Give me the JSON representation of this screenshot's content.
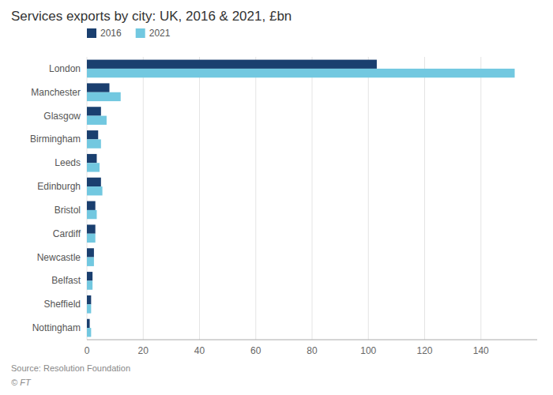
{
  "chart_data": {
    "type": "bar",
    "orientation": "horizontal",
    "title": "Services exports by city: UK, 2016 & 2021, £bn",
    "categories": [
      "London",
      "Manchester",
      "Glasgow",
      "Birmingham",
      "Leeds",
      "Edinburgh",
      "Bristol",
      "Cardiff",
      "Newcastle",
      "Belfast",
      "Sheffield",
      "Nottingham"
    ],
    "series": [
      {
        "name": "2016",
        "color": "#1a3f6f",
        "values": [
          103,
          8,
          5,
          4,
          3.5,
          5,
          3,
          3,
          2.5,
          2,
          1.5,
          1
        ]
      },
      {
        "name": "2021",
        "color": "#72c8e0",
        "values": [
          152,
          12,
          7,
          5,
          4.5,
          5.5,
          3.5,
          3,
          2.5,
          2,
          1.5,
          1.5
        ]
      }
    ],
    "xlim": [
      0,
      160
    ],
    "xticks": [
      0,
      20,
      40,
      60,
      80,
      100,
      120,
      140
    ],
    "grid": true,
    "legend": "upper left",
    "annotations": [
      "Source: Resolution Foundation",
      "© FT"
    ]
  }
}
